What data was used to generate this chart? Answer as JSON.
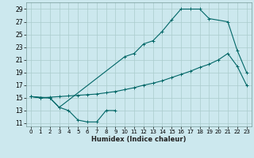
{
  "xlabel": "Humidex (Indice chaleur)",
  "bg_color": "#cce8ee",
  "grid_color": "#aacccc",
  "line_color": "#006666",
  "xlim": [
    -0.5,
    23.5
  ],
  "ylim": [
    10.5,
    30.0
  ],
  "xticks": [
    0,
    1,
    2,
    3,
    4,
    5,
    6,
    7,
    8,
    9,
    10,
    11,
    12,
    13,
    14,
    15,
    16,
    17,
    18,
    19,
    20,
    21,
    22,
    23
  ],
  "yticks": [
    11,
    13,
    15,
    17,
    19,
    21,
    23,
    25,
    27,
    29
  ],
  "curve1_x": [
    0,
    1,
    2,
    3,
    4,
    5,
    6,
    7,
    8,
    9
  ],
  "curve1_y": [
    15.2,
    15.0,
    15.0,
    13.5,
    13.0,
    11.5,
    11.2,
    11.2,
    13.0,
    13.0
  ],
  "curve2_x": [
    0,
    1,
    2,
    3,
    4,
    5,
    6,
    7,
    8,
    9,
    10,
    11,
    12,
    13,
    14,
    15,
    16,
    17,
    18,
    19,
    20,
    21,
    22,
    23
  ],
  "curve2_y": [
    15.2,
    15.0,
    15.1,
    15.2,
    15.3,
    15.4,
    15.5,
    15.6,
    15.8,
    16.0,
    16.3,
    16.6,
    17.0,
    17.3,
    17.7,
    18.2,
    18.7,
    19.2,
    19.8,
    20.3,
    21.0,
    22.0,
    20.0,
    17.0
  ],
  "curve3_x": [
    0,
    2,
    3,
    10,
    11,
    12,
    13,
    14,
    15,
    16,
    17,
    18,
    19,
    21,
    22,
    23
  ],
  "curve3_y": [
    15.2,
    15.0,
    13.5,
    21.5,
    22.0,
    23.5,
    24.0,
    25.5,
    27.3,
    29.0,
    29.0,
    29.0,
    27.5,
    27.0,
    22.5,
    19.0
  ],
  "tick_fontsize": 5.0,
  "xlabel_fontsize": 6.0
}
